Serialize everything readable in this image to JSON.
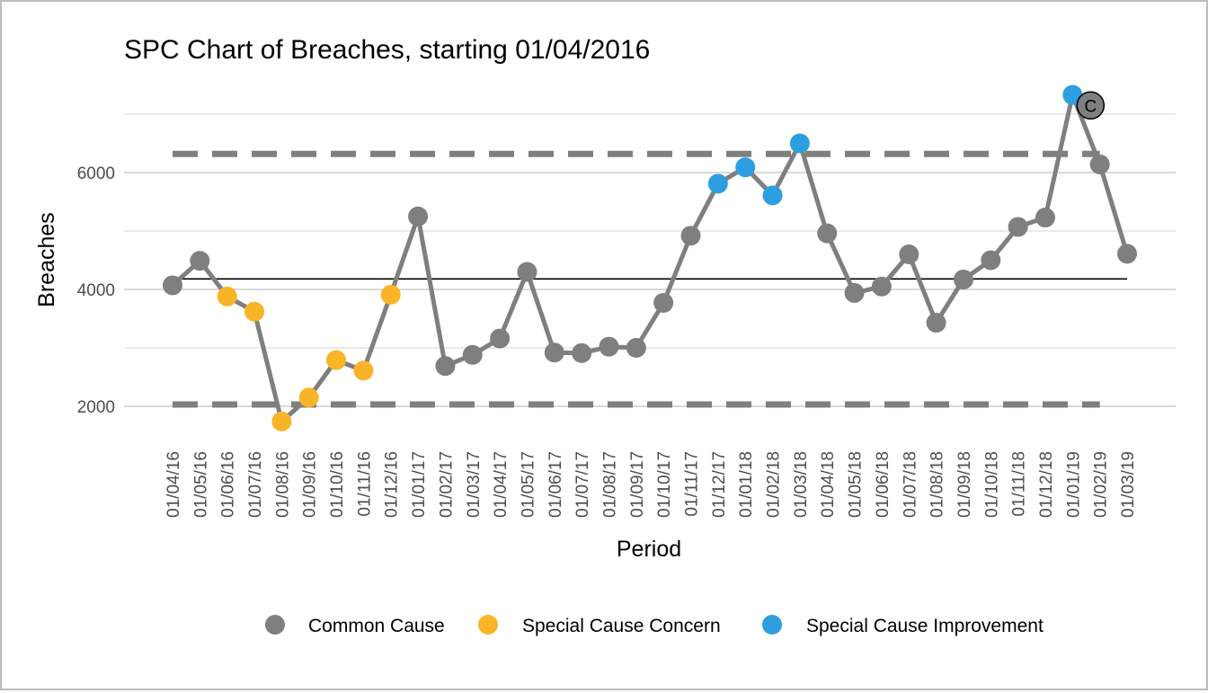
{
  "chart_data": {
    "type": "line",
    "title": "SPC Chart of Breaches, starting 01/04/2016",
    "xlabel": "Period",
    "ylabel": "Breaches",
    "ylim": [
      1400,
      7650
    ],
    "yticks": [
      2000,
      4000,
      6000
    ],
    "grid": true,
    "legend_position": "bottom",
    "categories": [
      "01/04/16",
      "01/05/16",
      "01/06/16",
      "01/07/16",
      "01/08/16",
      "01/09/16",
      "01/10/16",
      "01/11/16",
      "01/12/16",
      "01/01/17",
      "01/02/17",
      "01/03/17",
      "01/04/17",
      "01/05/17",
      "01/06/17",
      "01/07/17",
      "01/08/17",
      "01/09/17",
      "01/10/17",
      "01/11/17",
      "01/12/17",
      "01/01/18",
      "01/02/18",
      "01/03/18",
      "01/04/18",
      "01/05/18",
      "01/06/18",
      "01/07/18",
      "01/08/18",
      "01/09/18",
      "01/10/18",
      "01/11/18",
      "01/12/18",
      "01/01/19",
      "01/02/19",
      "01/03/19"
    ],
    "series": [
      {
        "values": [
          4070,
          4490,
          3880,
          3620,
          1740,
          2150,
          2790,
          2610,
          3910,
          5250,
          2690,
          2880,
          3160,
          4300,
          2920,
          2910,
          3020,
          3000,
          3770,
          4920,
          5810,
          6090,
          5610,
          6500,
          4960,
          3940,
          4050,
          4600,
          3430,
          4170,
          4500,
          5070,
          5230,
          7330,
          6140,
          4610
        ],
        "point_types": [
          "common",
          "common",
          "concern",
          "concern",
          "concern",
          "concern",
          "concern",
          "concern",
          "concern",
          "common",
          "common",
          "common",
          "common",
          "common",
          "common",
          "common",
          "common",
          "common",
          "common",
          "common",
          "improvement",
          "improvement",
          "improvement",
          "improvement",
          "common",
          "common",
          "common",
          "common",
          "common",
          "common",
          "common",
          "common",
          "common",
          "improvement",
          "common",
          "common"
        ]
      }
    ],
    "mean": 4180,
    "upper_control_limit": 6320,
    "lower_control_limit": 2030,
    "annotation": {
      "label": "C",
      "category": "01/01/19",
      "value": 7150
    },
    "colors": {
      "common": "#7f7f7f",
      "concern": "#f9b428",
      "improvement": "#2d9fe0",
      "line": "#7f7f7f",
      "limits": "#7f7f7f",
      "mean": "#000000"
    },
    "legend": [
      {
        "key": "common",
        "label": "Common Cause"
      },
      {
        "key": "concern",
        "label": "Special Cause Concern"
      },
      {
        "key": "improvement",
        "label": "Special Cause Improvement"
      }
    ]
  }
}
